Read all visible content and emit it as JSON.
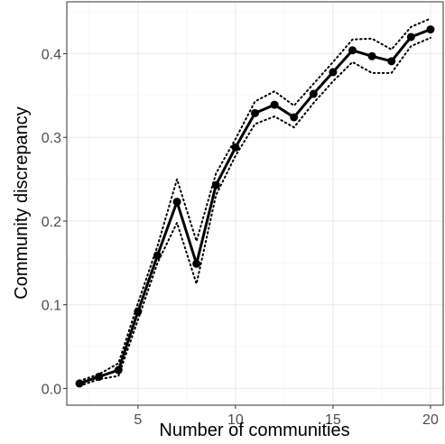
{
  "chart_data": {
    "type": "line",
    "title": "",
    "xlabel": "Number of communities",
    "ylabel": "Community discrepancy",
    "xlim": [
      1.35,
      20.65
    ],
    "ylim": [
      -0.02,
      0.462
    ],
    "x_ticks": [
      5,
      10,
      15,
      20
    ],
    "x_tick_labels": [
      "5",
      "10",
      "15",
      "20"
    ],
    "y_ticks": [
      0.0,
      0.1,
      0.2,
      0.3,
      0.4
    ],
    "y_tick_labels": [
      "0.0",
      "0.1",
      "0.2",
      "0.3",
      "0.4"
    ],
    "grid": true,
    "series": [
      {
        "style": "solid line with points",
        "color": "#000000",
        "x": [
          2,
          3,
          4,
          5,
          6,
          7,
          8,
          9,
          10,
          11,
          12,
          13,
          14,
          15,
          16,
          17,
          18,
          19,
          20
        ],
        "y": [
          0.006,
          0.014,
          0.022,
          0.092,
          0.159,
          0.223,
          0.149,
          0.243,
          0.288,
          0.329,
          0.339,
          0.324,
          0.352,
          0.378,
          0.404,
          0.397,
          0.391,
          0.42,
          0.429
        ]
      },
      {
        "style": "dotted line",
        "color": "#000000",
        "x": [
          2,
          3,
          4,
          5,
          6,
          7,
          8,
          9,
          10,
          11,
          12,
          13,
          14,
          15,
          16,
          17,
          18,
          19,
          20
        ],
        "y": [
          0.009,
          0.017,
          0.03,
          0.102,
          0.17,
          0.25,
          0.176,
          0.257,
          0.298,
          0.343,
          0.355,
          0.338,
          0.364,
          0.39,
          0.417,
          0.418,
          0.405,
          0.432,
          0.442
        ]
      },
      {
        "style": "dotted line",
        "color": "#000000",
        "x": [
          2,
          3,
          4,
          5,
          6,
          7,
          8,
          9,
          10,
          11,
          12,
          13,
          14,
          15,
          16,
          17,
          18,
          19,
          20
        ],
        "y": [
          0.003,
          0.011,
          0.015,
          0.082,
          0.15,
          0.198,
          0.125,
          0.231,
          0.278,
          0.316,
          0.325,
          0.312,
          0.341,
          0.367,
          0.39,
          0.377,
          0.377,
          0.409,
          0.419
        ]
      }
    ]
  }
}
